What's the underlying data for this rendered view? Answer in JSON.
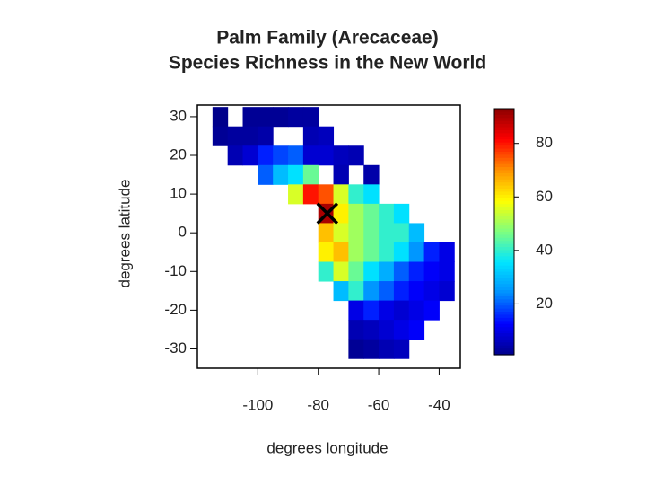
{
  "chart_data": {
    "type": "raster-map",
    "title": "Palm Family (Arecaceae)",
    "subtitle": "Species Richness in the New World",
    "x_label": "degrees longitude",
    "y_label": "degrees latitude",
    "xlim": [
      -120,
      -33
    ],
    "ylim": [
      -35,
      33
    ],
    "xticks": [
      -100,
      -80,
      -60,
      -40
    ],
    "yticks": [
      -30,
      -20,
      -10,
      0,
      10,
      20,
      30
    ],
    "zlim": [
      1,
      93
    ],
    "zticks": [
      20,
      40,
      60,
      80
    ],
    "colormap": [
      "#00008b",
      "#0000ff",
      "#0090ff",
      "#00e5ff",
      "#7fff7f",
      "#ffff00",
      "#ff9000",
      "#ff0000",
      "#8b0000"
    ],
    "x": [
      -117.5,
      -112.5,
      -107.5,
      -102.5,
      -97.5,
      -92.5,
      -87.5,
      -82.5,
      -77.5,
      -72.5,
      -67.5,
      -62.5,
      -57.5,
      -52.5,
      -47.5,
      -42.5,
      -37.5
    ],
    "y": [
      30,
      25,
      20,
      15,
      10,
      5,
      0,
      -5,
      -10,
      -15,
      -20,
      -25,
      -30
    ],
    "values": [
      [
        null,
        1,
        null,
        2,
        2,
        2,
        3,
        3,
        null,
        null,
        null,
        null,
        null,
        null,
        null,
        null,
        null
      ],
      [
        null,
        2,
        3,
        3,
        4,
        null,
        null,
        5,
        6,
        null,
        null,
        null,
        null,
        null,
        null,
        null,
        null
      ],
      [
        null,
        null,
        5,
        8,
        15,
        18,
        20,
        8,
        8,
        6,
        5,
        null,
        null,
        null,
        null,
        null,
        null
      ],
      [
        null,
        null,
        null,
        null,
        20,
        30,
        35,
        45,
        null,
        5,
        null,
        4,
        null,
        null,
        null,
        null,
        null
      ],
      [
        null,
        null,
        null,
        null,
        null,
        null,
        55,
        80,
        75,
        55,
        40,
        35,
        null,
        null,
        null,
        null,
        null
      ],
      [
        null,
        null,
        null,
        null,
        null,
        null,
        null,
        null,
        90,
        60,
        50,
        45,
        40,
        35,
        null,
        null,
        null
      ],
      [
        null,
        null,
        null,
        null,
        null,
        null,
        null,
        null,
        65,
        55,
        50,
        45,
        40,
        40,
        30,
        null,
        null
      ],
      [
        null,
        null,
        null,
        null,
        null,
        null,
        null,
        null,
        60,
        65,
        50,
        45,
        40,
        35,
        25,
        15,
        10
      ],
      [
        null,
        null,
        null,
        null,
        null,
        null,
        null,
        null,
        40,
        55,
        45,
        35,
        28,
        20,
        15,
        12,
        10
      ],
      [
        null,
        null,
        null,
        null,
        null,
        null,
        null,
        null,
        null,
        30,
        40,
        25,
        20,
        15,
        12,
        10,
        8
      ],
      [
        null,
        null,
        null,
        null,
        null,
        null,
        null,
        null,
        null,
        null,
        10,
        15,
        10,
        8,
        10,
        12,
        null
      ],
      [
        null,
        null,
        null,
        null,
        null,
        null,
        null,
        null,
        null,
        null,
        5,
        6,
        8,
        10,
        12,
        null,
        null
      ],
      [
        null,
        null,
        null,
        null,
        null,
        null,
        null,
        null,
        null,
        null,
        2,
        3,
        5,
        6,
        null,
        null,
        null
      ]
    ],
    "marker": {
      "x": -77,
      "y": 5
    }
  }
}
